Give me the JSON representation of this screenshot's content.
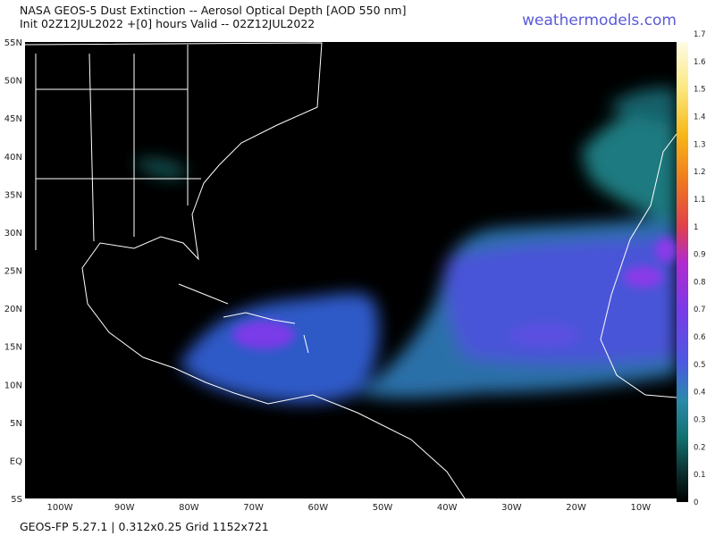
{
  "header": {
    "title": "NASA GEOS-5 Dust Extinction -- Aerosol Optical Depth [AOD 550 nm]",
    "subtitle": "Init 02Z12JUL2022 +[0] hours Valid -- 02Z12JUL2022",
    "brand": "weathermodels.com"
  },
  "map": {
    "lat_labels": [
      "55N",
      "50N",
      "45N",
      "40N",
      "35N",
      "30N",
      "25N",
      "20N",
      "15N",
      "10N",
      "5N",
      "EQ",
      "5S"
    ],
    "lon_labels": [
      "100W",
      "90W",
      "80W",
      "70W",
      "60W",
      "50W",
      "40W",
      "30W",
      "20W",
      "10W"
    ]
  },
  "colorbar": {
    "ticks": [
      0,
      0.1,
      0.2,
      0.3,
      0.4,
      0.5,
      0.6,
      0.7,
      0.8,
      0.9,
      1,
      1.1,
      1.2,
      1.3,
      1.4,
      1.5,
      1.6,
      1.7
    ]
  },
  "footer": "GEOS-FP 5.27.1 | 0.312x0.25 Grid 1152x721"
}
